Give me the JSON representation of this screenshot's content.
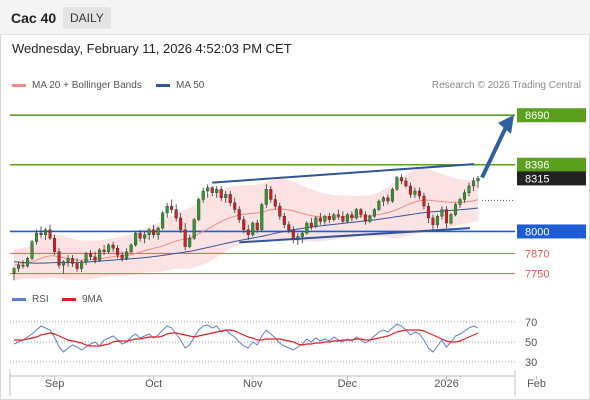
{
  "header": {
    "instrument": "Cac 40",
    "timeframe": "DAILY"
  },
  "datetime": "Wednesday, February 11, 2026 4:52:03 PM CET",
  "legend": {
    "ma20_label": "MA 20 + Bollinger Bands",
    "ma50_label": "MA 50",
    "rsi_label": "RSI",
    "rsi_ma_label": "9MA",
    "ma20_color": "#f08a85",
    "ma50_color": "#2f5597",
    "rsi_color": "#5b7fd6",
    "rsi_ma_color": "#e02020"
  },
  "copyright": "Research © 2026 Trading Central",
  "chart_data": [
    {
      "type": "candlestick",
      "xlabel": "",
      "ylabel": "",
      "x_ticks": [
        "Sep",
        "Oct",
        "Nov",
        "Dec",
        "2026",
        "Feb"
      ],
      "ylim": [
        7700,
        8810
      ],
      "levels": [
        {
          "value": 8690,
          "label": "8690",
          "role": "resistance 2",
          "color": "#5aa01e",
          "style": "box"
        },
        {
          "value": 8396,
          "label": "8396",
          "role": "resistance 1",
          "color": "#5aa01e",
          "style": "box"
        },
        {
          "value": 8315,
          "label": "8315",
          "role": "last price",
          "color": "#222222",
          "style": "box"
        },
        {
          "value": 8000,
          "label": "8000",
          "role": "pivot",
          "color": "#1e5cd6",
          "style": "box"
        },
        {
          "value": 7870,
          "label": "7870",
          "role": "support 1",
          "color": "#e05a50",
          "style": "text"
        },
        {
          "value": 7750,
          "label": "7750",
          "role": "support 2",
          "color": "#e05a50",
          "style": "text"
        }
      ],
      "trend_channel": {
        "upper": [
          8290,
          8400
        ],
        "lower": [
          7935,
          8020
        ]
      },
      "forecast_arrow": {
        "from": 8320,
        "to": 8680
      },
      "candles": [
        [
          7750,
          7790,
          7710,
          7780
        ],
        [
          7780,
          7820,
          7760,
          7800
        ],
        [
          7800,
          7830,
          7780,
          7795
        ],
        [
          7795,
          7850,
          7785,
          7840
        ],
        [
          7840,
          7950,
          7830,
          7940
        ],
        [
          7940,
          8010,
          7920,
          7990
        ],
        [
          7990,
          8030,
          7960,
          7980
        ],
        [
          7980,
          8020,
          7950,
          8010
        ],
        [
          8010,
          8040,
          7950,
          7960
        ],
        [
          7960,
          7980,
          7860,
          7880
        ],
        [
          7880,
          7900,
          7780,
          7800
        ],
        [
          7800,
          7830,
          7750,
          7820
        ],
        [
          7820,
          7860,
          7790,
          7840
        ],
        [
          7840,
          7860,
          7790,
          7810
        ],
        [
          7810,
          7840,
          7760,
          7780
        ],
        [
          7780,
          7830,
          7760,
          7820
        ],
        [
          7820,
          7880,
          7800,
          7870
        ],
        [
          7870,
          7890,
          7830,
          7850
        ],
        [
          7850,
          7880,
          7810,
          7830
        ],
        [
          7830,
          7900,
          7820,
          7890
        ],
        [
          7890,
          7920,
          7860,
          7880
        ],
        [
          7880,
          7930,
          7870,
          7920
        ],
        [
          7920,
          7940,
          7880,
          7900
        ],
        [
          7900,
          7920,
          7840,
          7860
        ],
        [
          7860,
          7880,
          7820,
          7840
        ],
        [
          7840,
          7900,
          7830,
          7880
        ],
        [
          7880,
          7930,
          7870,
          7920
        ],
        [
          7920,
          8000,
          7910,
          7990
        ],
        [
          7990,
          8010,
          7940,
          7960
        ],
        [
          7960,
          8000,
          7930,
          7980
        ],
        [
          7980,
          8020,
          7950,
          8010
        ],
        [
          8010,
          8040,
          7960,
          7980
        ],
        [
          7980,
          8030,
          7950,
          8020
        ],
        [
          8020,
          8120,
          8010,
          8110
        ],
        [
          8110,
          8170,
          8080,
          8150
        ],
        [
          8150,
          8190,
          8110,
          8130
        ],
        [
          8130,
          8160,
          8060,
          8080
        ],
        [
          8080,
          8110,
          7990,
          8010
        ],
        [
          8010,
          8050,
          7890,
          7910
        ],
        [
          7910,
          7980,
          7900,
          7960
        ],
        [
          7960,
          8080,
          7950,
          8070
        ],
        [
          8070,
          8200,
          8060,
          8190
        ],
        [
          8190,
          8260,
          8170,
          8240
        ],
        [
          8240,
          8280,
          8200,
          8260
        ],
        [
          8260,
          8270,
          8210,
          8230
        ],
        [
          8230,
          8270,
          8200,
          8250
        ],
        [
          8250,
          8270,
          8180,
          8200
        ],
        [
          8200,
          8240,
          8170,
          8220
        ],
        [
          8220,
          8240,
          8150,
          8170
        ],
        [
          8170,
          8200,
          8110,
          8130
        ],
        [
          8130,
          8150,
          8050,
          8070
        ],
        [
          8070,
          8090,
          7990,
          8010
        ],
        [
          8010,
          8040,
          7950,
          7980
        ],
        [
          7980,
          8060,
          7970,
          8050
        ],
        [
          8050,
          8070,
          7990,
          8010
        ],
        [
          8010,
          8170,
          8000,
          8160
        ],
        [
          8160,
          8280,
          8140,
          8250
        ],
        [
          8250,
          8270,
          8170,
          8190
        ],
        [
          8190,
          8220,
          8130,
          8150
        ],
        [
          8150,
          8170,
          8070,
          8090
        ],
        [
          8090,
          8110,
          8020,
          8040
        ],
        [
          8040,
          8060,
          7990,
          8010
        ],
        [
          8010,
          8030,
          7930,
          7950
        ],
        [
          7950,
          7990,
          7920,
          7970
        ],
        [
          7970,
          8000,
          7930,
          7990
        ],
        [
          7990,
          8060,
          7980,
          8050
        ],
        [
          8050,
          8080,
          8010,
          8030
        ],
        [
          8030,
          8090,
          8020,
          8080
        ],
        [
          8080,
          8110,
          8040,
          8060
        ],
        [
          8060,
          8100,
          8040,
          8090
        ],
        [
          8090,
          8110,
          8050,
          8070
        ],
        [
          8070,
          8110,
          8060,
          8100
        ],
        [
          8100,
          8130,
          8070,
          8090
        ],
        [
          8090,
          8120,
          8050,
          8060
        ],
        [
          8060,
          8110,
          8050,
          8100
        ],
        [
          8100,
          8120,
          8060,
          8080
        ],
        [
          8080,
          8140,
          8070,
          8130
        ],
        [
          8130,
          8140,
          8080,
          8100
        ],
        [
          8100,
          8120,
          8040,
          8060
        ],
        [
          8060,
          8100,
          8050,
          8090
        ],
        [
          8090,
          8140,
          8080,
          8130
        ],
        [
          8130,
          8190,
          8120,
          8180
        ],
        [
          8180,
          8210,
          8150,
          8200
        ],
        [
          8200,
          8220,
          8160,
          8180
        ],
        [
          8180,
          8260,
          8170,
          8250
        ],
        [
          8250,
          8330,
          8240,
          8320
        ],
        [
          8320,
          8340,
          8280,
          8300
        ],
        [
          8300,
          8320,
          8260,
          8270
        ],
        [
          8270,
          8290,
          8200,
          8220
        ],
        [
          8220,
          8260,
          8200,
          8240
        ],
        [
          8240,
          8260,
          8190,
          8210
        ],
        [
          8210,
          8230,
          8130,
          8150
        ],
        [
          8150,
          8170,
          8050,
          8080
        ],
        [
          8080,
          8100,
          8000,
          8040
        ],
        [
          8040,
          8100,
          8020,
          8090
        ],
        [
          8090,
          8150,
          8070,
          8130
        ],
        [
          8130,
          8150,
          8020,
          8050
        ],
        [
          8050,
          8110,
          8040,
          8100
        ],
        [
          8100,
          8170,
          8090,
          8160
        ],
        [
          8160,
          8200,
          8140,
          8190
        ],
        [
          8190,
          8250,
          8170,
          8230
        ],
        [
          8230,
          8290,
          8210,
          8270
        ],
        [
          8270,
          8320,
          8240,
          8300
        ],
        [
          8300,
          8330,
          8260,
          8315
        ]
      ],
      "ma20": [
        7800,
        7805,
        7810,
        7815,
        7820,
        7830,
        7840,
        7850,
        7855,
        7855,
        7850,
        7845,
        7840,
        7835,
        7830,
        7830,
        7830,
        7832,
        7835,
        7838,
        7842,
        7846,
        7850,
        7852,
        7854,
        7857,
        7862,
        7870,
        7878,
        7886,
        7893,
        7900,
        7906,
        7914,
        7924,
        7934,
        7944,
        7950,
        7954,
        7960,
        7970,
        7985,
        8000,
        8015,
        8030,
        8045,
        8060,
        8072,
        8082,
        8090,
        8097,
        8102,
        8105,
        8107,
        8110,
        8115,
        8122,
        8128,
        8132,
        8133,
        8131,
        8128,
        8122,
        8115,
        8108,
        8100,
        8094,
        8090,
        8087,
        8085,
        8084,
        8084,
        8085,
        8086,
        8087,
        8088,
        8089,
        8091,
        8092,
        8094,
        8097,
        8101,
        8106,
        8112,
        8120,
        8130,
        8142,
        8155,
        8166,
        8175,
        8182,
        8186,
        8186,
        8183,
        8180,
        8177,
        8175,
        8174,
        8173,
        8173,
        8175,
        8178,
        8182,
        8188
      ],
      "ma50": [
        7820,
        7818,
        7816,
        7814,
        7812,
        7812,
        7812,
        7813,
        7814,
        7815,
        7815,
        7815,
        7815,
        7815,
        7815,
        7816,
        7818,
        7820,
        7822,
        7824,
        7826,
        7828,
        7830,
        7832,
        7834,
        7836,
        7838,
        7840,
        7842,
        7845,
        7848,
        7851,
        7854,
        7858,
        7862,
        7866,
        7870,
        7874,
        7878,
        7882,
        7887,
        7893,
        7899,
        7905,
        7911,
        7917,
        7923,
        7929,
        7935,
        7941,
        7946,
        7951,
        7956,
        7961,
        7966,
        7971,
        7977,
        7983,
        7989,
        7995,
        8000,
        8005,
        8010,
        8014,
        8018,
        8022,
        8026,
        8030,
        8033,
        8036,
        8039,
        8042,
        8045,
        8048,
        8051,
        8054,
        8057,
        8060,
        8063,
        8066,
        8069,
        8072,
        8076,
        8080,
        8084,
        8088,
        8092,
        8096,
        8100,
        8104,
        8108,
        8112,
        8115,
        8117,
        8119,
        8121,
        8123,
        8125,
        8127,
        8129,
        8131,
        8133,
        8136,
        8139
      ],
      "bollinger_width": [
        90,
        90,
        92,
        95,
        100,
        110,
        120,
        125,
        128,
        130,
        130,
        128,
        125,
        122,
        120,
        118,
        116,
        114,
        112,
        110,
        110,
        110,
        112,
        114,
        116,
        118,
        120,
        124,
        128,
        132,
        136,
        140,
        145,
        150,
        155,
        160,
        165,
        170,
        175,
        180,
        185,
        190,
        195,
        200,
        200,
        198,
        195,
        190,
        185,
        180,
        175,
        172,
        170,
        168,
        168,
        170,
        172,
        175,
        178,
        180,
        180,
        178,
        175,
        170,
        165,
        160,
        155,
        150,
        145,
        140,
        136,
        132,
        130,
        128,
        126,
        124,
        122,
        120,
        120,
        122,
        126,
        132,
        140,
        150,
        160,
        170,
        178,
        184,
        188,
        190,
        190,
        188,
        184,
        178,
        172,
        165,
        158,
        150,
        142,
        135,
        130,
        128,
        126,
        125
      ]
    },
    {
      "type": "line",
      "title": "",
      "ylim": [
        20,
        80
      ],
      "y_ticks": [
        70,
        50,
        30
      ],
      "series": [
        {
          "name": "RSI",
          "values": [
            48,
            50,
            52,
            55,
            58,
            62,
            66,
            64,
            62,
            55,
            45,
            40,
            44,
            47,
            45,
            42,
            45,
            48,
            50,
            46,
            52,
            54,
            56,
            52,
            48,
            50,
            55,
            58,
            54,
            56,
            58,
            54,
            57,
            62,
            66,
            64,
            58,
            52,
            44,
            47,
            55,
            62,
            66,
            67,
            64,
            66,
            60,
            62,
            58,
            55,
            50,
            46,
            44,
            50,
            47,
            56,
            62,
            58,
            54,
            49,
            46,
            44,
            42,
            45,
            48,
            53,
            50,
            54,
            51,
            53,
            51,
            55,
            52,
            50,
            53,
            51,
            55,
            52,
            49,
            52,
            56,
            60,
            62,
            60,
            64,
            68,
            66,
            62,
            57,
            60,
            58,
            52,
            44,
            40,
            46,
            52,
            45,
            50,
            56,
            58,
            61,
            64,
            66,
            64
          ]
        },
        {
          "name": "9MA",
          "values": [
            52,
            52,
            52,
            53,
            54,
            55,
            57,
            58,
            59,
            58,
            56,
            54,
            52,
            51,
            50,
            49,
            47,
            46,
            46,
            46,
            47,
            48,
            50,
            51,
            51,
            51,
            52,
            53,
            53,
            54,
            55,
            55,
            55,
            56,
            58,
            59,
            59,
            58,
            57,
            56,
            55,
            56,
            57,
            58,
            59,
            60,
            61,
            62,
            62,
            61,
            59,
            57,
            55,
            54,
            52,
            52,
            53,
            53,
            53,
            53,
            52,
            51,
            50,
            48,
            47,
            48,
            48,
            49,
            49,
            50,
            50,
            51,
            51,
            52,
            52,
            52,
            53,
            53,
            52,
            52,
            53,
            54,
            55,
            56,
            58,
            60,
            61,
            62,
            62,
            62,
            62,
            61,
            59,
            57,
            55,
            53,
            51,
            50,
            50,
            51,
            53,
            55,
            57,
            59
          ]
        }
      ]
    }
  ]
}
